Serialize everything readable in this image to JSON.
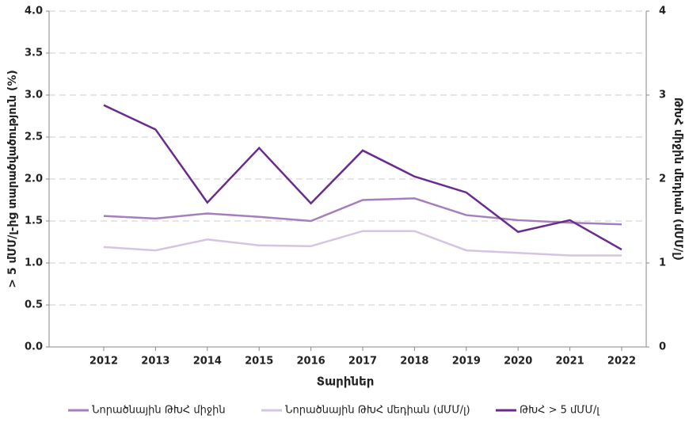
{
  "chart_data": {
    "type": "line",
    "x_label": "Տարիներ",
    "y_label": "> 5 մՄՄ/լ-ից տարածվածություն (%)",
    "y2_label": "ԹԽՀ միջին մեդիան (մՄՄ/լ)",
    "categories": [
      "2012",
      "2013",
      "2014",
      "2015",
      "2016",
      "2017",
      "2018",
      "2019",
      "2020",
      "2021",
      "2022"
    ],
    "series": [
      {
        "name": "Նորածնային ԹԽՀ միջին",
        "color": "#a57fbd",
        "axis": "y2",
        "values": [
          1.56,
          1.53,
          1.59,
          1.55,
          1.5,
          1.75,
          1.77,
          1.57,
          1.51,
          1.48,
          1.46
        ]
      },
      {
        "name": "Նորածնային ԹԽՀ մեդիան (մՄՄ/լ)",
        "color": "#d5c4e2",
        "axis": "y2",
        "values": [
          1.19,
          1.15,
          1.28,
          1.21,
          1.2,
          1.38,
          1.38,
          1.15,
          1.12,
          1.09,
          1.09
        ]
      },
      {
        "name": "ԹԽՀ > 5 մՄՄ/լ",
        "color": "#6a2c8c",
        "values": [
          2.88,
          2.59,
          1.72,
          2.37,
          1.71,
          2.34,
          2.03,
          1.84,
          1.37,
          1.51,
          1.16
        ]
      }
    ],
    "ylim": [
      0,
      4
    ],
    "yticks": [
      {
        "value": 0,
        "label": "0.0"
      },
      0.5,
      {
        "value": 1,
        "label": "1.0"
      },
      1.5,
      {
        "value": 2,
        "label": "2.0"
      },
      2.5,
      {
        "value": 3,
        "label": "3.0"
      },
      3.5,
      {
        "value": 4,
        "label": "4.0"
      }
    ],
    "y2lim": [
      0,
      4
    ],
    "y2ticks": [
      0,
      1,
      2,
      3,
      4
    ],
    "grid": true,
    "legend": "bottom"
  }
}
